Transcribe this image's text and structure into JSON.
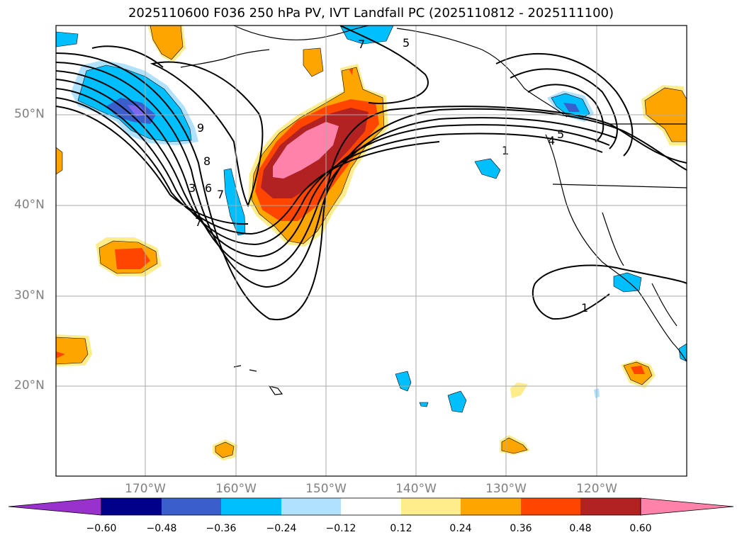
{
  "title": "2025110600 F036 250 hPa PV, IVT Landfall PC (2025110812 - 2025111100)",
  "map": {
    "lat_labels": [
      "50°N",
      "40°N",
      "30°N",
      "20°N"
    ],
    "lon_labels": [
      "170°W",
      "160°W",
      "150°W",
      "140°W",
      "130°W",
      "120°W"
    ],
    "contour_labels": [
      "7",
      "5",
      "9",
      "8",
      "6",
      "3",
      "7",
      "7",
      "1",
      "4",
      "5",
      "1"
    ]
  },
  "colorbar": {
    "colors": [
      "#9932cc",
      "#00008b",
      "#3a5fcd",
      "#00bfff",
      "#b0e2ff",
      "#ffffff",
      "#ffec8b",
      "#ffa500",
      "#ff4500",
      "#b22222",
      "#ff82ab"
    ],
    "ticks": [
      "−0.60",
      "−0.48",
      "−0.36",
      "−0.24",
      "−0.12",
      "0.12",
      "0.24",
      "0.36",
      "0.48",
      "0.60"
    ]
  }
}
